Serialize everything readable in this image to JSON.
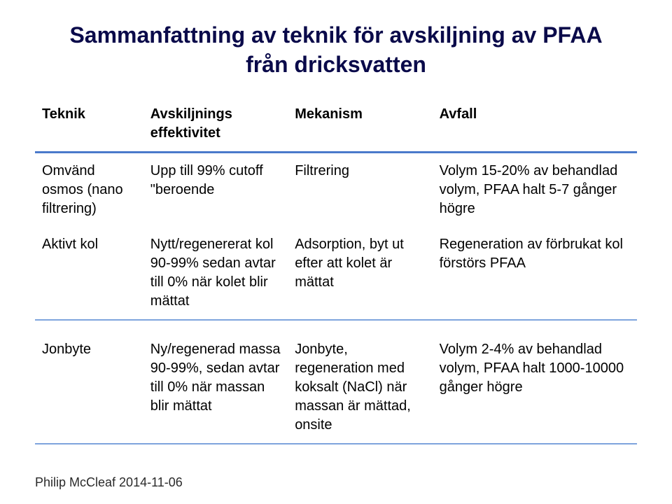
{
  "title_line1": "Sammanfattning av teknik för avskiljning av PFAA",
  "title_line2": "från dricksvatten",
  "table": {
    "header_bg": "#ffffff",
    "header_border": "#4a7acb",
    "row_border": "#7ea4dd",
    "text_color": "#0a0a4a",
    "cell_fontsize": 20,
    "header_fontsize": 21,
    "columns": [
      {
        "label": "Teknik",
        "width_pct": 18
      },
      {
        "label": "Avskiljnings effektivitet",
        "width_pct": 24
      },
      {
        "label": "Mekanism",
        "width_pct": 24
      },
      {
        "label": "Avfall",
        "width_pct": 34
      }
    ],
    "groups": [
      {
        "rows": [
          {
            "teknik": "Omvänd osmos (nano filtrering)",
            "effektivitet": "Upp till 99% cutoff \"beroende",
            "mekanism": "Filtrering",
            "avfall": "Volym 15-20% av behandlad volym, PFAA halt 5-7 gånger högre"
          },
          {
            "teknik": "Aktivt kol",
            "effektivitet": "Nytt/regenererat kol 90-99%  sedan avtar till 0% när kolet blir mättat",
            "mekanism": "Adsorption, byt ut efter att kolet är mättat",
            "avfall": "Regeneration av förbrukat kol förstörs PFAA"
          }
        ]
      },
      {
        "rows": [
          {
            "teknik": "Jonbyte",
            "effektivitet": "Ny/regenerad massa 90-99%, sedan avtar till 0% när massan blir mättat",
            "mekanism": "Jonbyte, regeneration med koksalt (NaCl) när massan är mättad, onsite",
            "avfall": "Volym 2-4% av behandlad volym, PFAA halt 1000-10000 gånger högre"
          }
        ]
      }
    ]
  },
  "footer": "Philip McCleaf 2014-11-06",
  "background_color": "#ffffff"
}
